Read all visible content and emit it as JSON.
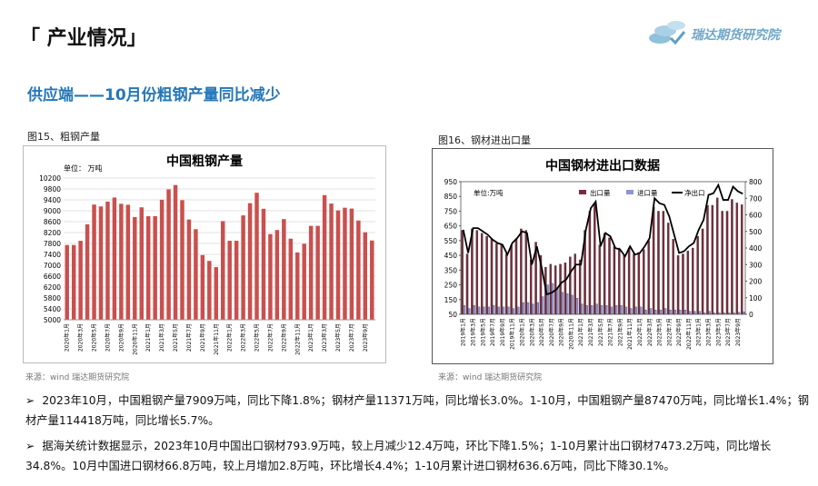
{
  "header": {
    "title": "「 产业情况」",
    "logo": "瑞达期货研究院"
  },
  "section_title": "供应端——10月份粗钢产量同比减少",
  "figures": [
    {
      "caption": "图15、粗钢产量",
      "source": "来源：wind   瑞达期货研究院"
    },
    {
      "caption": "图16、钢材进出口量",
      "source": "来源：wind   瑞达期货研究院"
    }
  ],
  "bullets": [
    "2023年10月，中国粗钢产量7909万吨，同比下降1.8%；钢材产量11371万吨，同比增长3.0%。1-10月，中国粗钢产量87470万吨，同比增长1.4%；钢材产量114418万吨，同比增长5.7%。",
    "据海关统计数据显示，2023年10月中国出口钢材793.9万吨，较上月减少12.4万吨，环比下降1.5%；1-10月累计出口钢材7473.2万吨，同比增长34.8%。10月中国进口钢材66.8万吨，较上月增加2.8万吨，环比增长4.4%；1-10月累计进口钢材636.6万吨，同比下降30.1%。"
  ],
  "chart_data": [
    {
      "type": "bar",
      "title": "中国粗钢产量",
      "unit": "单位：  万吨",
      "color": "#c9504e",
      "grid": true,
      "categories": [
        "2020年1月",
        null,
        "2020年3月",
        null,
        "2020年5月",
        null,
        "2020年7月",
        null,
        "2020年9月",
        null,
        "2020年11月",
        null,
        "2021年1月",
        null,
        "2021年3月",
        null,
        "2021年5月",
        null,
        "2021年7月",
        null,
        "2021年9月",
        null,
        "2021年11月",
        null,
        "2022年1月",
        null,
        "2022年3月",
        null,
        "2022年5月",
        null,
        "2022年7月",
        null,
        "2022年9月",
        null,
        "2022年11月",
        null,
        "2023年1月",
        null,
        "2023年3月",
        null,
        "2023年5月",
        null,
        "2023年7月",
        null,
        "2023年9月",
        null
      ],
      "values": [
        7743,
        7743,
        7898,
        8503,
        9227,
        9158,
        9336,
        9485,
        9256,
        9220,
        8766,
        9125,
        8800,
        8800,
        9402,
        9785,
        9945,
        9388,
        8679,
        8324,
        7375,
        7158,
        6931,
        8619,
        7898,
        7898,
        8830,
        9278,
        9661,
        9073,
        8143,
        8292,
        8695,
        7976,
        7470,
        7789,
        8446,
        8446,
        9573,
        9264,
        9012,
        9111,
        9080,
        8641,
        8210,
        7909
      ],
      "ylim": [
        5000,
        10200
      ],
      "yticks": [
        5000,
        5400,
        5800,
        6200,
        6600,
        7000,
        7400,
        7800,
        8200,
        8600,
        9000,
        9400,
        9800,
        10200
      ]
    },
    {
      "type": "bar",
      "title": "中国钢材进出口数据",
      "unit": "单位:万吨",
      "grid": false,
      "categories": [
        "2019年1月",
        null,
        "2019年3月",
        null,
        "2019年5月",
        null,
        "2019年7月",
        null,
        "2019年9月",
        null,
        "2019年11月",
        null,
        "2020年1月",
        null,
        "2020年3月",
        null,
        "2020年5月",
        null,
        "2020年7月",
        null,
        "2020年9月",
        null,
        "2020年11月",
        null,
        "2021年1月",
        null,
        "2021年3月",
        null,
        "2021年5月",
        null,
        "2021年7月",
        null,
        "2021年9月",
        null,
        "2021年11月",
        null,
        "2022年1月",
        null,
        "2022年3月",
        null,
        "2022年5月",
        null,
        "2022年7月",
        null,
        "2022年9月",
        null,
        "2022年11月",
        null,
        "2023年1月",
        null,
        "2023年3月",
        null,
        "2023年5月",
        null,
        "2023年7月",
        null,
        "2023年9月",
        null
      ],
      "series": [
        {
          "name": "出口量",
          "color": "#7a2b3a",
          "values": [
            620,
            460,
            630,
            620,
            600,
            580,
            560,
            530,
            520,
            460,
            520,
            560,
            630,
            620,
            420,
            540,
            450,
            370,
            390,
            380,
            390,
            400,
            440,
            460,
            420,
            620,
            750,
            800,
            520,
            600,
            570,
            510,
            500,
            450,
            500,
            460,
            470,
            490,
            550,
            780,
            750,
            750,
            670,
            560,
            450,
            460,
            480,
            500,
            580,
            630,
            790,
            790,
            840,
            750,
            750,
            830,
            806,
            794
          ]
        },
        {
          "name": "进口量",
          "color": "#8f93d8",
          "values": [
            110,
            90,
            110,
            100,
            100,
            100,
            110,
            100,
            100,
            100,
            90,
            100,
            130,
            130,
            120,
            130,
            170,
            250,
            260,
            230,
            200,
            190,
            180,
            160,
            120,
            110,
            110,
            120,
            110,
            110,
            100,
            110,
            110,
            100,
            90,
            100,
            100,
            80,
            90,
            80,
            80,
            90,
            80,
            80,
            80,
            80,
            70,
            70,
            70,
            60,
            70,
            60,
            60,
            60,
            60,
            60,
            64,
            67
          ]
        },
        {
          "name": "净出口",
          "color": "#000000",
          "type": "line",
          "axis": "y2",
          "values": [
            510,
            370,
            520,
            520,
            500,
            480,
            450,
            430,
            420,
            360,
            430,
            460,
            500,
            490,
            300,
            410,
            280,
            120,
            130,
            150,
            190,
            210,
            260,
            300,
            300,
            510,
            640,
            680,
            410,
            490,
            470,
            400,
            390,
            350,
            410,
            360,
            370,
            410,
            460,
            700,
            670,
            660,
            590,
            480,
            370,
            380,
            410,
            430,
            510,
            570,
            720,
            730,
            780,
            690,
            690,
            770,
            742,
            727
          ]
        }
      ],
      "ylim": [
        50,
        950
      ],
      "yticks": [
        50,
        150,
        250,
        350,
        450,
        550,
        650,
        750,
        850,
        950
      ],
      "y2lim": [
        0,
        800
      ],
      "y2ticks": [
        0,
        100,
        200,
        300,
        400,
        500,
        600,
        700,
        800
      ]
    }
  ]
}
